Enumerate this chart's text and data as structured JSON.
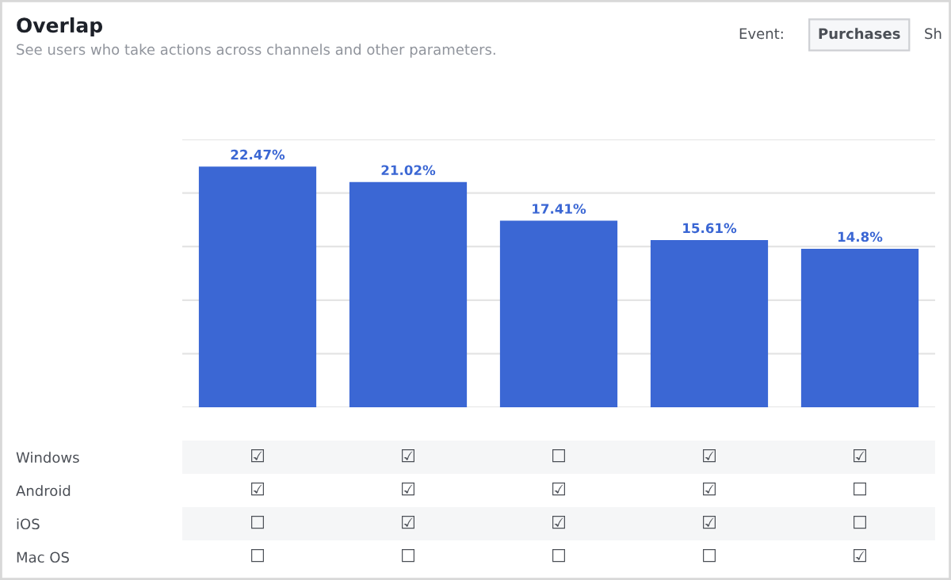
{
  "chart_data": [
    {
      "type": "bar",
      "title": "Overlap",
      "subtitle": "See users who take actions across channels and other parameters.",
      "annotations": [
        "Event:",
        "Purchases",
        "Sh"
      ],
      "categories": [
        null,
        null,
        null,
        null,
        null
      ],
      "values": [
        22.47,
        21.02,
        17.41,
        15.61,
        14.8
      ],
      "value_labels": [
        "22.47%",
        "21.02%",
        "17.41%",
        "15.61%",
        "14.8%"
      ],
      "color": "#3b67d4",
      "ylim": [
        0,
        25
      ],
      "yticks": [
        {
          "value": 0,
          "label": null
        },
        {
          "value": 5,
          "label": null
        },
        {
          "value": 10,
          "label": null
        },
        {
          "value": 15,
          "label": null
        },
        {
          "value": 20,
          "label": null
        },
        {
          "value": 25,
          "label": null
        }
      ],
      "grid": "y"
    },
    {
      "type": "other",
      "y_categories": [
        "Windows",
        "Android",
        "iOS",
        "Mac OS"
      ],
      "cell_labels": [
        [
          "☑",
          "☑",
          "☐",
          "☑",
          "☑"
        ],
        [
          "☑",
          "☑",
          "☑",
          "☑",
          "☐"
        ],
        [
          "☐",
          "☑",
          "☑",
          "☑",
          "☐"
        ],
        [
          "☐",
          "☐",
          "☐",
          "☐",
          "☑"
        ]
      ]
    }
  ]
}
